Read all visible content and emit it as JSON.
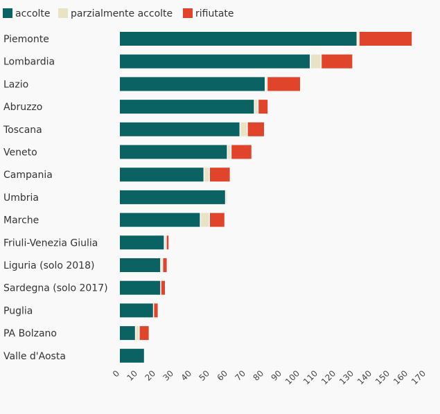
{
  "chart_data": {
    "type": "bar",
    "orientation": "horizontal",
    "stacked": true,
    "grid": false,
    "legend_position": "top-left",
    "xlim": [
      0,
      170
    ],
    "x_ticks": [
      "0",
      "10",
      "20",
      "30",
      "40",
      "50",
      "60",
      "70",
      "80",
      "90",
      "100",
      "110",
      "120",
      "130",
      "140",
      "150",
      "160",
      "170"
    ],
    "categories": [
      "Piemonte",
      "Lombardia",
      "Lazio",
      "Abruzzo",
      "Toscana",
      "Veneto",
      "Campania",
      "Umbria",
      "Marche",
      "Friuli-Venezia Giulia",
      "Liguria (solo 2018)",
      "Sardegna (solo 2017)",
      "Puglia",
      "PA Bolzano",
      "Valle d'Aosta"
    ],
    "series": [
      {
        "name": "accolte",
        "color": "#0b6262",
        "values": [
          132,
          106,
          81,
          75,
          67,
          60,
          47,
          59,
          45,
          25,
          23,
          23,
          19,
          9,
          14
        ]
      },
      {
        "name": "parzialmente accolte",
        "color": "#e8e3c4",
        "values": [
          1,
          6,
          1,
          2,
          4,
          2,
          3,
          1,
          5,
          1,
          1,
          0,
          0,
          2,
          0
        ]
      },
      {
        "name": "rifiutate",
        "color": "#e0442b",
        "values": [
          29,
          17,
          18,
          5,
          9,
          11,
          11,
          0,
          8,
          1,
          2,
          2,
          2,
          5,
          0
        ]
      }
    ]
  }
}
